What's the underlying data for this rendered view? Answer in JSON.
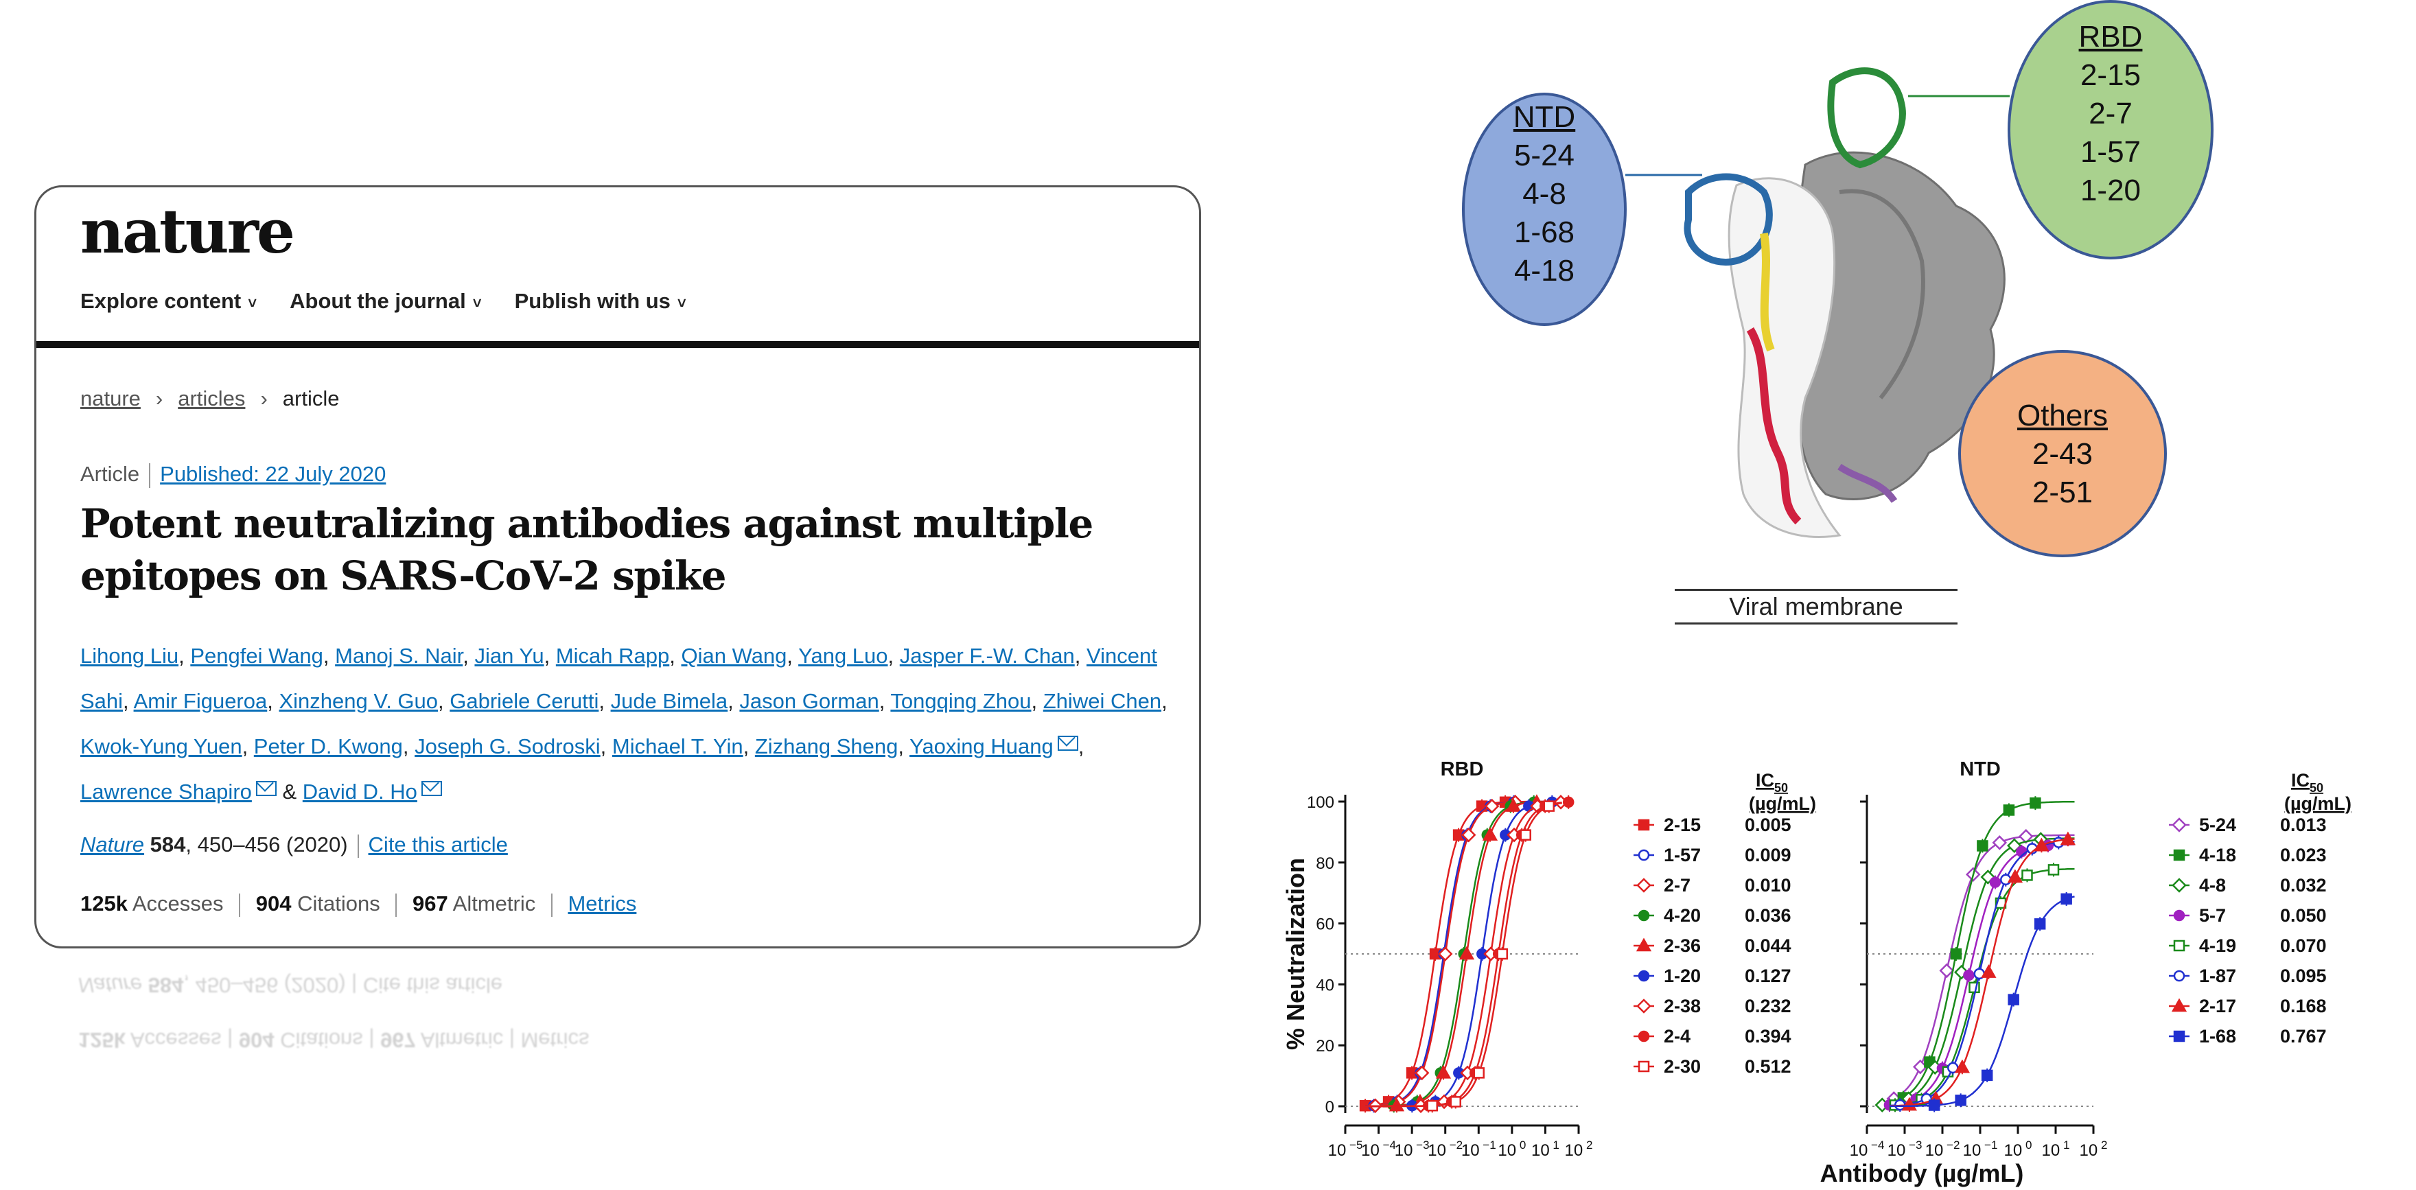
{
  "article": {
    "logo": "nature",
    "nav": [
      {
        "label": "Explore content"
      },
      {
        "label": "About the journal"
      },
      {
        "label": "Publish with us"
      }
    ],
    "breadcrumb": [
      "nature",
      "articles",
      "article"
    ],
    "type": "Article",
    "published": "Published: 22 July 2020",
    "title": "Potent neutralizing antibodies against multiple epitopes on SARS-CoV-2 spike",
    "authors": [
      "Lihong Liu",
      "Pengfei Wang",
      "Manoj S. Nair",
      "Jian Yu",
      "Micah Rapp",
      "Qian Wang",
      "Yang Luo",
      "Jasper F.-W. Chan",
      "Vincent Sahi",
      "Amir Figueroa",
      "Xinzheng V. Guo",
      "Gabriele Cerutti",
      "Jude Bimela",
      "Jason Gorman",
      "Tongqing Zhou",
      "Zhiwei Chen",
      "Kwok-Yung Yuen",
      "Peter D. Kwong",
      "Joseph G. Sodroski",
      "Michael T. Yin",
      "Zizhang Sheng",
      "Yaoxing Huang",
      "Lawrence Shapiro",
      "David D. Ho"
    ],
    "authors_with_mail": [
      "Yaoxing Huang",
      "Lawrence Shapiro",
      "David D. Ho"
    ],
    "journal": "Nature",
    "volume": "584",
    "pages": ", 450–456 (2020)",
    "cite": "Cite this article",
    "accesses_num": "125k",
    "accesses_label": "Accesses",
    "citations_num": "904",
    "citations_label": "Citations",
    "altmetric_num": "967",
    "altmetric_label": "Altmetric",
    "metrics_link": "Metrics"
  },
  "diagram": {
    "ntd": {
      "head": "NTD",
      "items": [
        "5-24",
        "4-8",
        "1-68",
        "4-18"
      ]
    },
    "rbd": {
      "head": "RBD",
      "items": [
        "2-15",
        "2-7",
        "1-57",
        "1-20"
      ]
    },
    "others": {
      "head": "Others",
      "items": [
        "2-43",
        "2-51"
      ]
    },
    "membrane": "Viral membrane"
  },
  "chart_data": [
    {
      "type": "scatter",
      "title": "RBD",
      "ylabel": "% Neutralization",
      "xscale": "log",
      "xlim": [
        1e-05,
        100
      ],
      "ylim": [
        0,
        100
      ],
      "reference_line": 50,
      "xticks": [
        "10^-5",
        "10^-4",
        "10^-3",
        "10^-2",
        "10^-1",
        "10^0",
        "10^1",
        "10^2"
      ],
      "yticks": [
        "0",
        "20",
        "40",
        "60",
        "80",
        "100"
      ],
      "legend_header": [
        "IC50",
        "(µg/mL)"
      ],
      "series": [
        {
          "name": "2-15",
          "ic50": 0.005,
          "ic50_label": "0.005",
          "color": "#e02020",
          "marker": "square",
          "filled": true
        },
        {
          "name": "1-57",
          "ic50": 0.009,
          "ic50_label": "0.009",
          "color": "#2030d0",
          "marker": "circle",
          "filled": false
        },
        {
          "name": "2-7",
          "ic50": 0.01,
          "ic50_label": "0.010",
          "color": "#e02020",
          "marker": "diamond",
          "filled": false
        },
        {
          "name": "4-20",
          "ic50": 0.036,
          "ic50_label": "0.036",
          "color": "#1a8a1a",
          "marker": "circle",
          "filled": true
        },
        {
          "name": "2-36",
          "ic50": 0.044,
          "ic50_label": "0.044",
          "color": "#e02020",
          "marker": "triangle",
          "filled": true
        },
        {
          "name": "1-20",
          "ic50": 0.127,
          "ic50_label": "0.127",
          "color": "#2030d0",
          "marker": "circle",
          "filled": true
        },
        {
          "name": "2-38",
          "ic50": 0.232,
          "ic50_label": "0.232",
          "color": "#e02020",
          "marker": "diamond",
          "filled": false
        },
        {
          "name": "2-4",
          "ic50": 0.394,
          "ic50_label": "0.394",
          "color": "#e02020",
          "marker": "circle",
          "filled": true
        },
        {
          "name": "2-30",
          "ic50": 0.512,
          "ic50_label": "0.512",
          "color": "#e02020",
          "marker": "square",
          "filled": false
        }
      ]
    },
    {
      "type": "scatter",
      "title": "NTD",
      "xlabel": "Antibody (µg/mL)",
      "xscale": "log",
      "xlim": [
        0.0001,
        100
      ],
      "ylim": [
        0,
        100
      ],
      "reference_line": 50,
      "xticks": [
        "10^-4",
        "10^-3",
        "10^-2",
        "10^-1",
        "10^0",
        "10^1",
        "10^2"
      ],
      "legend_header": [
        "IC50",
        "(µg/mL)"
      ],
      "series": [
        {
          "name": "5-24",
          "ic50": 0.013,
          "ic50_label": "0.013",
          "color": "#a040c0",
          "marker": "diamond",
          "filled": false,
          "plateau": 89
        },
        {
          "name": "4-18",
          "ic50": 0.023,
          "ic50_label": "0.023",
          "color": "#1a8a1a",
          "marker": "square",
          "filled": true,
          "plateau": 100
        },
        {
          "name": "4-8",
          "ic50": 0.032,
          "ic50_label": "0.032",
          "color": "#1a8a1a",
          "marker": "diamond",
          "filled": false,
          "plateau": 88
        },
        {
          "name": "5-7",
          "ic50": 0.05,
          "ic50_label": "0.050",
          "color": "#a020c0",
          "marker": "circle",
          "filled": true,
          "plateau": 86
        },
        {
          "name": "4-19",
          "ic50": 0.07,
          "ic50_label": "0.070",
          "color": "#1a8a1a",
          "marker": "square",
          "filled": false,
          "plateau": 78
        },
        {
          "name": "1-87",
          "ic50": 0.095,
          "ic50_label": "0.095",
          "color": "#2030d0",
          "marker": "circle",
          "filled": false,
          "plateau": 87
        },
        {
          "name": "2-17",
          "ic50": 0.168,
          "ic50_label": "0.168",
          "color": "#e02020",
          "marker": "triangle",
          "filled": true,
          "plateau": 88
        },
        {
          "name": "1-68",
          "ic50": 0.767,
          "ic50_label": "0.767",
          "color": "#2030d0",
          "marker": "square",
          "filled": true,
          "plateau": 70
        }
      ]
    }
  ],
  "colors": {
    "link": "#0a6fb8",
    "ntd": "#8ea9dc",
    "rbd": "#a9d18e",
    "others": "#f4b183"
  }
}
